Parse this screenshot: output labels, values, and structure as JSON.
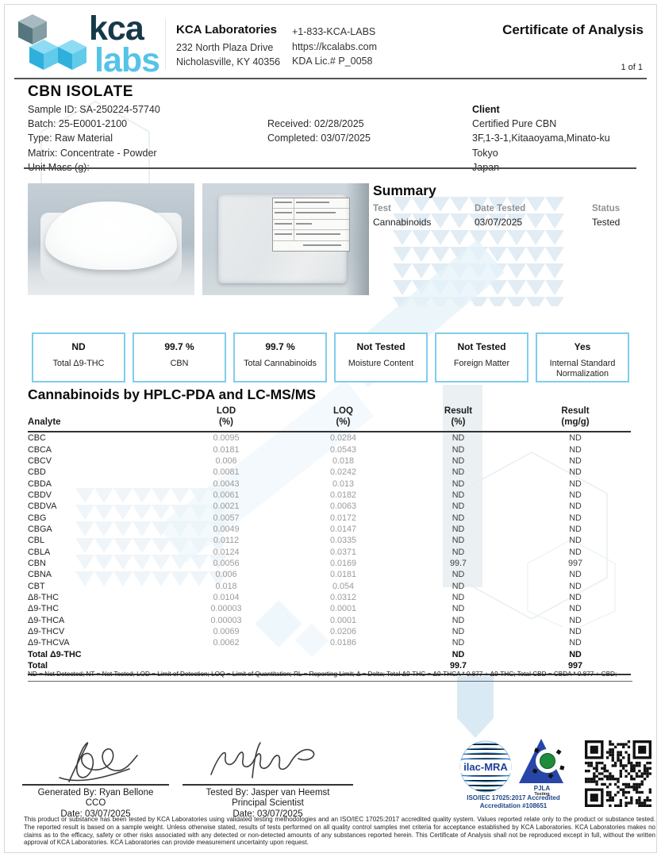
{
  "header": {
    "logo_kca": "kca",
    "logo_labs": "labs",
    "company_name": "KCA Laboratories",
    "address_line1": "232 North Plaza Drive",
    "address_line2": "Nicholasville, KY 40356",
    "phone": "+1-833-KCA-LABS",
    "website": "https://kcalabs.com",
    "license": "KDA Lic.# P_0058",
    "doc_title": "Certificate of Analysis",
    "page_indicator": "1 of 1"
  },
  "sample": {
    "product_title": "CBN ISOLATE",
    "sample_id": "Sample ID: SA-250224-57740",
    "batch": "Batch: 25-E0001-2100",
    "type": "Type: Raw Material",
    "matrix": "Matrix: Concentrate - Powder",
    "unit_mass": "Unit Mass (g):",
    "received": "Received: 02/28/2025",
    "completed": "Completed: 03/07/2025",
    "client_label": "Client",
    "client_name": "Certified Pure CBN",
    "client_address": "3F,1-3-1,Kitaaoyama,Minato-ku",
    "client_city": "Tokyo",
    "client_country": "Japan"
  },
  "summary": {
    "title": "Summary",
    "test_label": "Test",
    "test_value": "Cannabinoids",
    "date_label": "Date Tested",
    "date_value": "03/07/2025",
    "status_label": "Status",
    "status_value": "Tested"
  },
  "result_boxes": [
    {
      "value": "ND",
      "label": "Total Δ9-THC"
    },
    {
      "value": "99.7 %",
      "label": "CBN"
    },
    {
      "value": "99.7 %",
      "label": "Total Cannabinoids"
    },
    {
      "value": "Not Tested",
      "label": "Moisture Content"
    },
    {
      "value": "Not Tested",
      "label": "Foreign Matter"
    },
    {
      "value": "Yes",
      "label": "Internal Standard Normalization"
    }
  ],
  "cannabinoids": {
    "title": "Cannabinoids by HPLC-PDA and LC-MS/MS",
    "headers": [
      "Analyte",
      "LOD\n(%)",
      "LOQ\n(%)",
      "Result\n(%)",
      "Result\n(mg/g)"
    ],
    "rows": [
      {
        "analyte": "CBC",
        "lod": "0.0095",
        "loq": "0.0284",
        "result_pct": "ND",
        "result_mgg": "ND",
        "bold": false
      },
      {
        "analyte": "CBCA",
        "lod": "0.0181",
        "loq": "0.0543",
        "result_pct": "ND",
        "result_mgg": "ND",
        "bold": false
      },
      {
        "analyte": "CBCV",
        "lod": "0.006",
        "loq": "0.018",
        "result_pct": "ND",
        "result_mgg": "ND",
        "bold": false
      },
      {
        "analyte": "CBD",
        "lod": "0.0081",
        "loq": "0.0242",
        "result_pct": "ND",
        "result_mgg": "ND",
        "bold": false
      },
      {
        "analyte": "CBDA",
        "lod": "0.0043",
        "loq": "0.013",
        "result_pct": "ND",
        "result_mgg": "ND",
        "bold": false
      },
      {
        "analyte": "CBDV",
        "lod": "0.0061",
        "loq": "0.0182",
        "result_pct": "ND",
        "result_mgg": "ND",
        "bold": false
      },
      {
        "analyte": "CBDVA",
        "lod": "0.0021",
        "loq": "0.0063",
        "result_pct": "ND",
        "result_mgg": "ND",
        "bold": false
      },
      {
        "analyte": "CBG",
        "lod": "0.0057",
        "loq": "0.0172",
        "result_pct": "ND",
        "result_mgg": "ND",
        "bold": false
      },
      {
        "analyte": "CBGA",
        "lod": "0.0049",
        "loq": "0.0147",
        "result_pct": "ND",
        "result_mgg": "ND",
        "bold": false
      },
      {
        "analyte": "CBL",
        "lod": "0.0112",
        "loq": "0.0335",
        "result_pct": "ND",
        "result_mgg": "ND",
        "bold": false
      },
      {
        "analyte": "CBLA",
        "lod": "0.0124",
        "loq": "0.0371",
        "result_pct": "ND",
        "result_mgg": "ND",
        "bold": false
      },
      {
        "analyte": "CBN",
        "lod": "0.0056",
        "loq": "0.0169",
        "result_pct": "99.7",
        "result_mgg": "997",
        "bold": false
      },
      {
        "analyte": "CBNA",
        "lod": "0.006",
        "loq": "0.0181",
        "result_pct": "ND",
        "result_mgg": "ND",
        "bold": false
      },
      {
        "analyte": "CBT",
        "lod": "0.018",
        "loq": "0.054",
        "result_pct": "ND",
        "result_mgg": "ND",
        "bold": false
      },
      {
        "analyte": "Δ8-THC",
        "lod": "0.0104",
        "loq": "0.0312",
        "result_pct": "ND",
        "result_mgg": "ND",
        "bold": false
      },
      {
        "analyte": "Δ9-THC",
        "lod": "0.00003",
        "loq": "0.0001",
        "result_pct": "ND",
        "result_mgg": "ND",
        "bold": false
      },
      {
        "analyte": "Δ9-THCA",
        "lod": "0.00003",
        "loq": "0.0001",
        "result_pct": "ND",
        "result_mgg": "ND",
        "bold": false
      },
      {
        "analyte": "Δ9-THCV",
        "lod": "0.0069",
        "loq": "0.0206",
        "result_pct": "ND",
        "result_mgg": "ND",
        "bold": false
      },
      {
        "analyte": "Δ9-THCVA",
        "lod": "0.0062",
        "loq": "0.0186",
        "result_pct": "ND",
        "result_mgg": "ND",
        "bold": false
      },
      {
        "analyte": "Total Δ9-THC",
        "lod": "",
        "loq": "",
        "result_pct": "ND",
        "result_mgg": "ND",
        "bold": true
      },
      {
        "analyte": "Total",
        "lod": "",
        "loq": "",
        "result_pct": "99.7",
        "result_mgg": "997",
        "bold": true
      }
    ],
    "footnote": "ND = Not Detected; NT = Not Tested; LOD = Limit of Detection; LOQ = Limit of Quantitation; RL = Reporting Limit; Δ = Delta; Total Δ9-THC = Δ9-THCA * 0.877 + Δ9-THC; Total CBD = CBDA * 0.877 + CBD;"
  },
  "signatures": {
    "generated_by": "Generated By: Ryan Bellone",
    "generated_title": "CCO",
    "generated_date": "Date: 03/07/2025",
    "tested_by": "Tested By: Jasper van Heemst",
    "tested_title": "Principal Scientist",
    "tested_date": "Date: 03/07/2025"
  },
  "accreditation": {
    "ilac_text": "ilac-MRA",
    "pjla_name": "PJLA",
    "pjla_sub": "Testing",
    "iso_line1": "ISO/IEC 17025:2017 Accredited",
    "iso_line2": "Accreditation #108651"
  },
  "disclaimer": "This product or substance has been tested by KCA Laboratories using validated testing methodologies and an ISO/IEC 17025:2017 accredited quality system. Values reported relate only to the product or substance tested. The reported result is based on a sample weight. Unless otherwise stated, results of tests performed on all quality control samples met criteria for acceptance established by KCA Laboratories. KCA Laboratories makes no claims as to the efficacy, safety or other risks associated with any detected or non-detected amounts of any substances reported herein. This Certificate of Analysis shall not be reproduced except in full, without the written approval of KCA Laboratories. KCA Laboratories can provide measurement uncertainty upon request.",
  "colors": {
    "brand_navy": "#16394a",
    "brand_blue": "#55c3e8",
    "box_border": "#7fcdec"
  }
}
